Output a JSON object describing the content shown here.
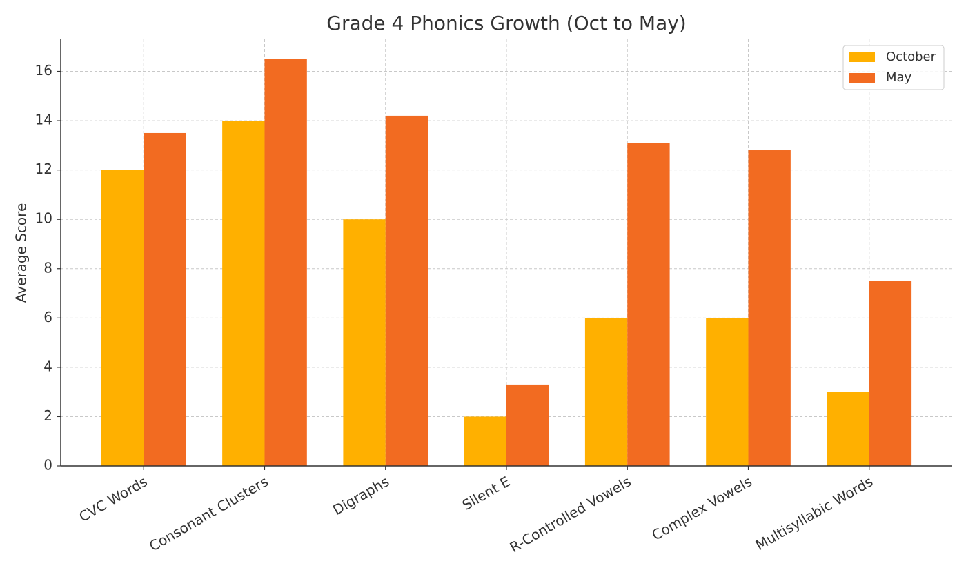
{
  "chart_data": {
    "type": "bar",
    "title": "Grade 4 Phonics Growth (Oct to May)",
    "y_label": "Average Score",
    "categories": [
      "CVC Words",
      "Consonant Clusters",
      "Digraphs",
      "Silent E",
      "R-Controlled Vowels",
      "Complex Vowels",
      "Multisyllabic Words"
    ],
    "series": [
      {
        "name": "October",
        "color": "#ffb000",
        "values": [
          12,
          14,
          10,
          2,
          6,
          6,
          3
        ]
      },
      {
        "name": "May",
        "color": "#f26b21",
        "values": [
          13.5,
          16.5,
          14.2,
          3.3,
          13.1,
          12.8,
          7.5
        ]
      }
    ],
    "ylim": [
      0,
      17.3
    ],
    "yticks": [
      0,
      2,
      4,
      6,
      8,
      10,
      12,
      14,
      16
    ],
    "grid": true,
    "legend": "upper right"
  }
}
